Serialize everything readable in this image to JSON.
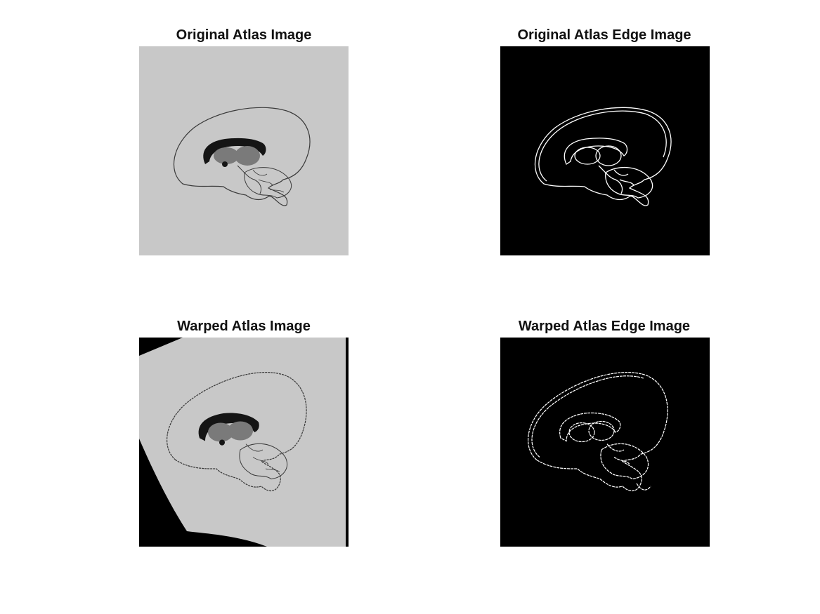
{
  "figure": {
    "panels": [
      {
        "title": "Original Atlas Image",
        "background_color": "#c8c8c8",
        "outline_color": "#3a3a3a"
      },
      {
        "title": "Original Atlas Edge Image",
        "background_color": "#000000",
        "outline_color": "#ffffff"
      },
      {
        "title": "Warped Atlas Image",
        "background_color": "#c8c8c8",
        "outline_color": "#3a3a3a",
        "warp_fill_color": "#000000"
      },
      {
        "title": "Warped Atlas Edge Image",
        "background_color": "#000000",
        "outline_color": "#ffffff"
      }
    ],
    "structure_colors": {
      "corpus_callosum": "#151515",
      "thalamus": "#7a7a7a",
      "edge": "#ffffff"
    }
  }
}
